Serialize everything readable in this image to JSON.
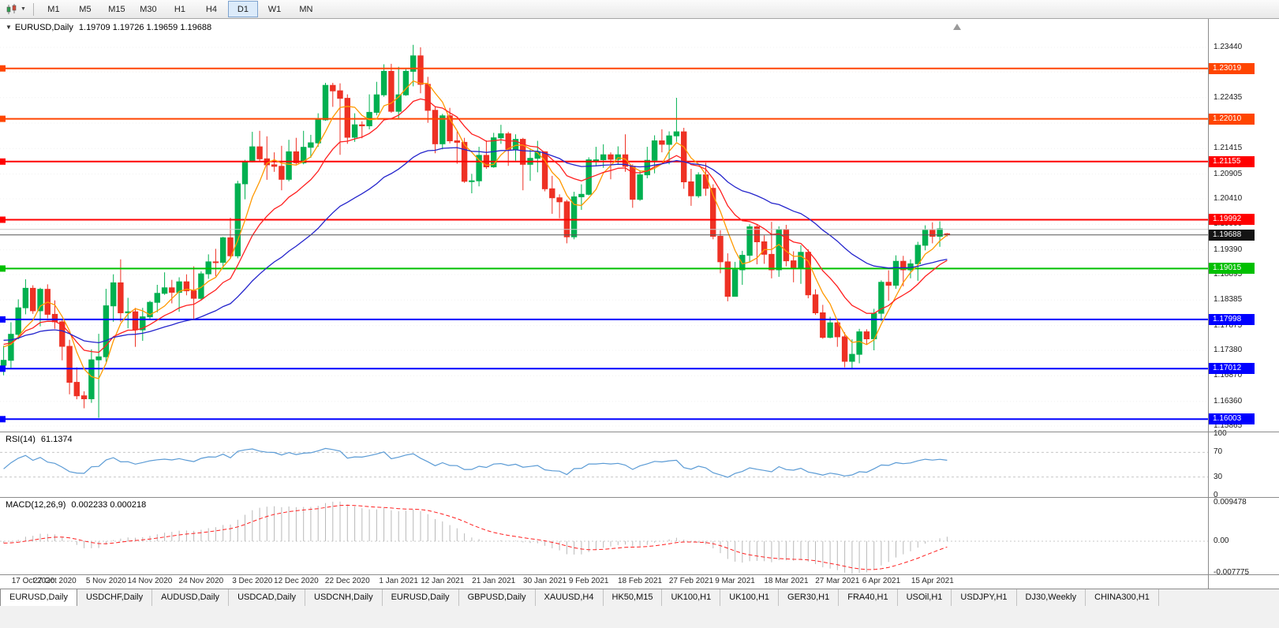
{
  "toolbar": {
    "timeframes": [
      "M1",
      "M5",
      "M15",
      "M30",
      "H1",
      "H4",
      "D1",
      "W1",
      "MN"
    ],
    "active_timeframe": "D1"
  },
  "icons": {
    "expand_arrow": "▼",
    "toolbar_caret": "▼"
  },
  "colors": {
    "up_candle": "#00b050",
    "down_candle": "#ee3124",
    "ma_fast": "#ff9900",
    "ma_mid": "#ff2020",
    "ma_slow": "#2424cc",
    "rsi_line": "#5b9bd5",
    "macd_hist": "#b9b9b9",
    "macd_signal": "#ff2020",
    "grid": "#f0f0f0",
    "bid_badge": "#141414",
    "bid_line": "#555555"
  },
  "chart_data": {
    "type": "candlestick",
    "symbol_timeframe": "EURUSD,Daily",
    "ohlc_text": "1.19709 1.19726 1.19659 1.19688",
    "last_candle": {
      "open": 1.19709,
      "high": 1.19726,
      "low": 1.19659,
      "close": 1.19688
    },
    "price_axis": {
      "labels": [
        "1.23440",
        "1.22945",
        "1.22435",
        "1.21925",
        "1.21415",
        "1.20905",
        "1.20410",
        "1.19900",
        "1.19390",
        "1.18895",
        "1.18385",
        "1.17875",
        "1.17380",
        "1.16870",
        "1.16360",
        "1.15865"
      ],
      "top_price": 1.24008,
      "bottom_price": 1.15755
    },
    "x_labels": [
      {
        "text": "17 Oct 2020",
        "index": 0
      },
      {
        "text": "27 Oct 2020",
        "index": 7
      },
      {
        "text": "5 Nov 2020",
        "index": 14
      },
      {
        "text": "14 Nov 2020",
        "index": 20
      },
      {
        "text": "24 Nov 2020",
        "index": 27
      },
      {
        "text": "3 Dec 2020",
        "index": 34
      },
      {
        "text": "12 Dec 2020",
        "index": 40
      },
      {
        "text": "22 Dec 2020",
        "index": 47
      },
      {
        "text": "1 Jan 2021",
        "index": 54
      },
      {
        "text": "12 Jan 2021",
        "index": 60
      },
      {
        "text": "21 Jan 2021",
        "index": 67
      },
      {
        "text": "30 Jan 2021",
        "index": 74
      },
      {
        "text": "9 Feb 2021",
        "index": 80
      },
      {
        "text": "18 Feb 2021",
        "index": 87
      },
      {
        "text": "27 Feb 2021",
        "index": 94
      },
      {
        "text": "9 Mar 2021",
        "index": 100
      },
      {
        "text": "18 Mar 2021",
        "index": 107
      },
      {
        "text": "27 Mar 2021",
        "index": 114
      },
      {
        "text": "6 Apr 2021",
        "index": 120
      },
      {
        "text": "15 Apr 2021",
        "index": 127
      }
    ],
    "hlines": [
      {
        "price": 1.23019,
        "label": "1.23019",
        "color": "#ff4500",
        "width": 2
      },
      {
        "price": 1.2201,
        "label": "1.22010",
        "color": "#ff4500",
        "width": 2
      },
      {
        "price": 1.21155,
        "label": "1.21155",
        "color": "#ff0000",
        "width": 2
      },
      {
        "price": 1.19992,
        "label": "1.19992",
        "color": "#ff0000",
        "width": 2
      },
      {
        "price": 1.19015,
        "label": "1.19015",
        "color": "#00c000",
        "width": 2
      },
      {
        "price": 1.17998,
        "label": "1.17998",
        "color": "#0000ff",
        "width": 2
      },
      {
        "price": 1.17012,
        "label": "1.17012",
        "color": "#0000ff",
        "width": 2
      },
      {
        "price": 1.16003,
        "label": "1.16003",
        "color": "#0000ff",
        "width": 2
      },
      {
        "price": 1.198,
        "label": null,
        "color": "#c8c8c8",
        "width": 1
      }
    ],
    "bid_line": {
      "price": 1.19688,
      "label": "1.19688"
    },
    "moving_averages": [
      {
        "name": "ma-fast",
        "method": "sma",
        "period": 5
      },
      {
        "name": "ma-mid",
        "method": "ema",
        "period": 13
      },
      {
        "name": "ma-slow",
        "method": "ema",
        "period": 34
      }
    ],
    "rsi": {
      "title": "RSI(14)",
      "value": "61.1374",
      "period": 14,
      "levels": [
        100,
        70,
        30,
        0
      ],
      "ylim": [
        0,
        100
      ]
    },
    "macd": {
      "title": "MACD(12,26,9)",
      "values": "0.002233 0.000218",
      "fast": 12,
      "slow": 26,
      "signal": 9,
      "axis_labels": [
        {
          "text": "0.009478",
          "value": 0.009478
        },
        {
          "text": "0.00",
          "value": 0
        },
        {
          "text": "-0.007775",
          "value": -0.007775
        }
      ]
    },
    "warmup_closes": [
      1.178,
      1.177,
      1.1785,
      1.181,
      1.1835,
      1.1855,
      1.187,
      1.1885,
      1.19,
      1.188,
      1.186,
      1.184,
      1.185,
      1.1865,
      1.1845,
      1.182,
      1.18,
      1.181,
      1.183,
      1.185,
      1.187,
      1.1865,
      1.184,
      1.1815,
      1.179,
      1.176,
      1.173,
      1.17,
      1.167,
      1.164,
      1.1625,
      1.166,
      1.169,
      1.172,
      1.174,
      1.172,
      1.17,
      1.1715,
      1.1735,
      1.1755,
      1.177,
      1.1785,
      1.18,
      1.179,
      1.1775,
      1.176,
      1.1745,
      1.1747,
      1.177,
      1.1745
    ],
    "candles": [
      [
        1.1708,
        1.1747,
        1.1688,
        1.1718
      ],
      [
        1.1718,
        1.1794,
        1.1703,
        1.177
      ],
      [
        1.177,
        1.184,
        1.176,
        1.1823
      ],
      [
        1.1823,
        1.188,
        1.181,
        1.1862
      ],
      [
        1.1862,
        1.1868,
        1.1811,
        1.1817
      ],
      [
        1.1817,
        1.1863,
        1.1786,
        1.186
      ],
      [
        1.186,
        1.187,
        1.1802,
        1.181
      ],
      [
        1.181,
        1.1838,
        1.1781,
        1.1795
      ],
      [
        1.1795,
        1.18,
        1.1718,
        1.1746
      ],
      [
        1.1746,
        1.1759,
        1.165,
        1.1674
      ],
      [
        1.1674,
        1.1704,
        1.164,
        1.1647
      ],
      [
        1.1647,
        1.1656,
        1.1622,
        1.1641
      ],
      [
        1.1641,
        1.174,
        1.1633,
        1.1719
      ],
      [
        1.1719,
        1.1771,
        1.1603,
        1.1725
      ],
      [
        1.1725,
        1.1861,
        1.1715,
        1.1827
      ],
      [
        1.1827,
        1.189,
        1.1795,
        1.1873
      ],
      [
        1.1873,
        1.192,
        1.1795,
        1.1813
      ],
      [
        1.1813,
        1.1843,
        1.1782,
        1.1815
      ],
      [
        1.1815,
        1.1823,
        1.1745,
        1.1779
      ],
      [
        1.1779,
        1.1823,
        1.1757,
        1.1805
      ],
      [
        1.1805,
        1.1837,
        1.1799,
        1.1834
      ],
      [
        1.1834,
        1.1869,
        1.1814,
        1.1852
      ],
      [
        1.1852,
        1.1894,
        1.1849,
        1.1863
      ],
      [
        1.1863,
        1.1879,
        1.1832,
        1.1854
      ],
      [
        1.1854,
        1.1884,
        1.1815,
        1.1875
      ],
      [
        1.1875,
        1.189,
        1.1848,
        1.1857
      ],
      [
        1.1857,
        1.1906,
        1.18,
        1.1842
      ],
      [
        1.1842,
        1.1896,
        1.1838,
        1.1891
      ],
      [
        1.1891,
        1.193,
        1.1881,
        1.1915
      ],
      [
        1.1915,
        1.1941,
        1.1886,
        1.1914
      ],
      [
        1.1914,
        1.1965,
        1.1905,
        1.1963
      ],
      [
        1.1963,
        1.2003,
        1.1923,
        1.1927
      ],
      [
        1.1927,
        1.2077,
        1.1922,
        1.2071
      ],
      [
        1.2071,
        1.2119,
        1.204,
        1.2115
      ],
      [
        1.2115,
        1.2175,
        1.2114,
        1.2145
      ],
      [
        1.2145,
        1.2177,
        1.2116,
        1.2121
      ],
      [
        1.2121,
        1.2166,
        1.2079,
        1.2109
      ],
      [
        1.2109,
        1.2134,
        1.2095,
        1.2106
      ],
      [
        1.2106,
        1.2147,
        1.2058,
        1.208
      ],
      [
        1.208,
        1.2159,
        1.2076,
        1.2135
      ],
      [
        1.2135,
        1.2163,
        1.211,
        1.2113
      ],
      [
        1.2113,
        1.2177,
        1.211,
        1.2144
      ],
      [
        1.2144,
        1.2169,
        1.2123,
        1.2153
      ],
      [
        1.2153,
        1.2212,
        1.2145,
        1.2199
      ],
      [
        1.2199,
        1.2273,
        1.2197,
        1.2268
      ],
      [
        1.2268,
        1.2273,
        1.2225,
        1.2257
      ],
      [
        1.2257,
        1.2272,
        1.2129,
        1.2242
      ],
      [
        1.2242,
        1.225,
        1.2151,
        1.2164
      ],
      [
        1.2164,
        1.2212,
        1.2155,
        1.2189
      ],
      [
        1.2189,
        1.2196,
        1.2162,
        1.2187
      ],
      [
        1.2187,
        1.225,
        1.218,
        1.2214
      ],
      [
        1.2214,
        1.2275,
        1.2208,
        1.2249
      ],
      [
        1.2249,
        1.231,
        1.2245,
        1.2296
      ],
      [
        1.2296,
        1.2311,
        1.2213,
        1.2216
      ],
      [
        1.2216,
        1.2305,
        1.22,
        1.2249
      ],
      [
        1.2249,
        1.2303,
        1.2247,
        1.2296
      ],
      [
        1.2296,
        1.2349,
        1.2266,
        1.2327
      ],
      [
        1.2327,
        1.2344,
        1.2252,
        1.227
      ],
      [
        1.227,
        1.2285,
        1.2193,
        1.2218
      ],
      [
        1.2218,
        1.2226,
        1.2132,
        1.2151
      ],
      [
        1.2151,
        1.2211,
        1.214,
        1.2207
      ],
      [
        1.2207,
        1.2223,
        1.2152,
        1.2157
      ],
      [
        1.2157,
        1.2176,
        1.2111,
        1.2154
      ],
      [
        1.2154,
        1.2163,
        1.2073,
        1.2076
      ],
      [
        1.2076,
        1.2091,
        1.2052,
        1.2077
      ],
      [
        1.2077,
        1.2145,
        1.2066,
        1.2128
      ],
      [
        1.2128,
        1.2158,
        1.2101,
        1.2105
      ],
      [
        1.2105,
        1.2173,
        1.2103,
        1.2163
      ],
      [
        1.2163,
        1.2189,
        1.2151,
        1.2171
      ],
      [
        1.2171,
        1.2175,
        1.2107,
        1.214
      ],
      [
        1.214,
        1.217,
        1.2117,
        1.216
      ],
      [
        1.216,
        1.2163,
        1.2058,
        1.211
      ],
      [
        1.211,
        1.2141,
        1.2077,
        1.2122
      ],
      [
        1.2122,
        1.2157,
        1.2094,
        1.2135
      ],
      [
        1.2135,
        1.2136,
        1.2056,
        1.2061
      ],
      [
        1.2061,
        1.2087,
        1.2011,
        1.2043
      ],
      [
        1.2043,
        1.205,
        1.2002,
        1.2035
      ],
      [
        1.2035,
        1.2039,
        1.1952,
        1.1965
      ],
      [
        1.1965,
        1.2055,
        1.196,
        1.2045
      ],
      [
        1.2045,
        1.207,
        1.2019,
        1.205
      ],
      [
        1.205,
        1.2124,
        1.2048,
        1.2119
      ],
      [
        1.2119,
        1.2145,
        1.2106,
        1.2119
      ],
      [
        1.2119,
        1.215,
        1.2103,
        1.2129
      ],
      [
        1.2129,
        1.2134,
        1.208,
        1.212
      ],
      [
        1.212,
        1.2146,
        1.211,
        1.2129
      ],
      [
        1.2129,
        1.217,
        1.2095,
        1.2106
      ],
      [
        1.2106,
        1.211,
        1.2023,
        1.204
      ],
      [
        1.204,
        1.2098,
        1.2037,
        1.2089
      ],
      [
        1.2089,
        1.2145,
        1.2082,
        1.2118
      ],
      [
        1.2118,
        1.2168,
        1.2092,
        1.2157
      ],
      [
        1.2157,
        1.218,
        1.2134,
        1.215
      ],
      [
        1.215,
        1.2176,
        1.211,
        1.2167
      ],
      [
        1.2167,
        1.2243,
        1.2155,
        1.2175
      ],
      [
        1.2175,
        1.2183,
        1.2061,
        1.2075
      ],
      [
        1.2075,
        1.2101,
        1.2027,
        1.2047
      ],
      [
        1.2047,
        1.2094,
        1.2043,
        1.2089
      ],
      [
        1.2089,
        1.2113,
        1.2047,
        1.2062
      ],
      [
        1.2062,
        1.207,
        1.196,
        1.1966
      ],
      [
        1.1966,
        1.1978,
        1.1892,
        1.1915
      ],
      [
        1.1915,
        1.1932,
        1.1836,
        1.1846
      ],
      [
        1.1846,
        1.1915,
        1.1846,
        1.1899
      ],
      [
        1.1899,
        1.1937,
        1.1869,
        1.1928
      ],
      [
        1.1928,
        1.199,
        1.1915,
        1.1985
      ],
      [
        1.1985,
        1.199,
        1.191,
        1.1955
      ],
      [
        1.1955,
        1.1968,
        1.1911,
        1.193
      ],
      [
        1.193,
        1.1995,
        1.1882,
        1.1899
      ],
      [
        1.1899,
        1.1986,
        1.1885,
        1.198
      ],
      [
        1.198,
        1.1989,
        1.1906,
        1.1917
      ],
      [
        1.1917,
        1.1936,
        1.1874,
        1.1903
      ],
      [
        1.1903,
        1.1948,
        1.1871,
        1.1934
      ],
      [
        1.1934,
        1.194,
        1.1842,
        1.1849
      ],
      [
        1.1849,
        1.186,
        1.1809,
        1.1813
      ],
      [
        1.1813,
        1.1829,
        1.1761,
        1.1764
      ],
      [
        1.1764,
        1.1805,
        1.1762,
        1.1793
      ],
      [
        1.1793,
        1.1795,
        1.1745,
        1.1765
      ],
      [
        1.1765,
        1.1774,
        1.1704,
        1.1716
      ],
      [
        1.1716,
        1.176,
        1.17,
        1.173
      ],
      [
        1.173,
        1.1781,
        1.1712,
        1.1775
      ],
      [
        1.1775,
        1.178,
        1.1749,
        1.1761
      ],
      [
        1.1761,
        1.1821,
        1.1738,
        1.1812
      ],
      [
        1.1812,
        1.1878,
        1.1796,
        1.1874
      ],
      [
        1.1874,
        1.1898,
        1.1837,
        1.1868
      ],
      [
        1.1868,
        1.1928,
        1.1861,
        1.1916
      ],
      [
        1.1916,
        1.1927,
        1.1866,
        1.1899
      ],
      [
        1.1899,
        1.192,
        1.1882,
        1.1911
      ],
      [
        1.1911,
        1.1955,
        1.1877,
        1.1948
      ],
      [
        1.1948,
        1.1988,
        1.1938,
        1.1978
      ],
      [
        1.1978,
        1.1994,
        1.1952,
        1.1966
      ],
      [
        1.1966,
        1.1996,
        1.1945,
        1.1981
      ],
      [
        1.19709,
        1.19726,
        1.19659,
        1.19688
      ]
    ]
  },
  "tabs": {
    "active_index": 0,
    "items": [
      "EURUSD,Daily",
      "USDCHF,Daily",
      "AUDUSD,Daily",
      "USDCAD,Daily",
      "USDCNH,Daily",
      "EURUSD,Daily",
      "GBPUSD,Daily",
      "XAUUSD,H4",
      "HK50,M15",
      "UK100,H1",
      "UK100,H1",
      "GER30,H1",
      "FRA40,H1",
      "USOil,H1",
      "USDJPY,H1",
      "DJ30,Weekly",
      "CHINA300,H1"
    ]
  }
}
